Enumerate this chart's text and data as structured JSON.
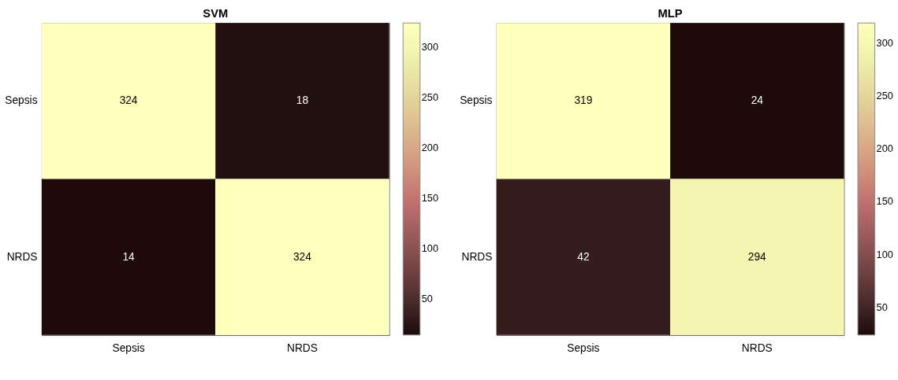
{
  "chart_data": [
    {
      "type": "heatmap",
      "title": "SVM",
      "categories": [
        "Sepsis",
        "NRDS"
      ],
      "y_categories": [
        "Sepsis",
        "NRDS"
      ],
      "cells": [
        [
          324,
          18
        ],
        [
          14,
          324
        ]
      ],
      "clim": [
        14,
        324
      ],
      "cticks": [
        50,
        100,
        150,
        200,
        250,
        300
      ],
      "data_labels": true
    },
    {
      "type": "heatmap",
      "title": "MLP",
      "categories": [
        "Sepsis",
        "NRDS"
      ],
      "y_categories": [
        "Sepsis",
        "NRDS"
      ],
      "cells": [
        [
          319,
          24
        ],
        [
          42,
          294
        ]
      ],
      "clim": [
        24,
        319
      ],
      "cticks": [
        50,
        100,
        150,
        200,
        250,
        300
      ],
      "data_labels": true
    }
  ]
}
